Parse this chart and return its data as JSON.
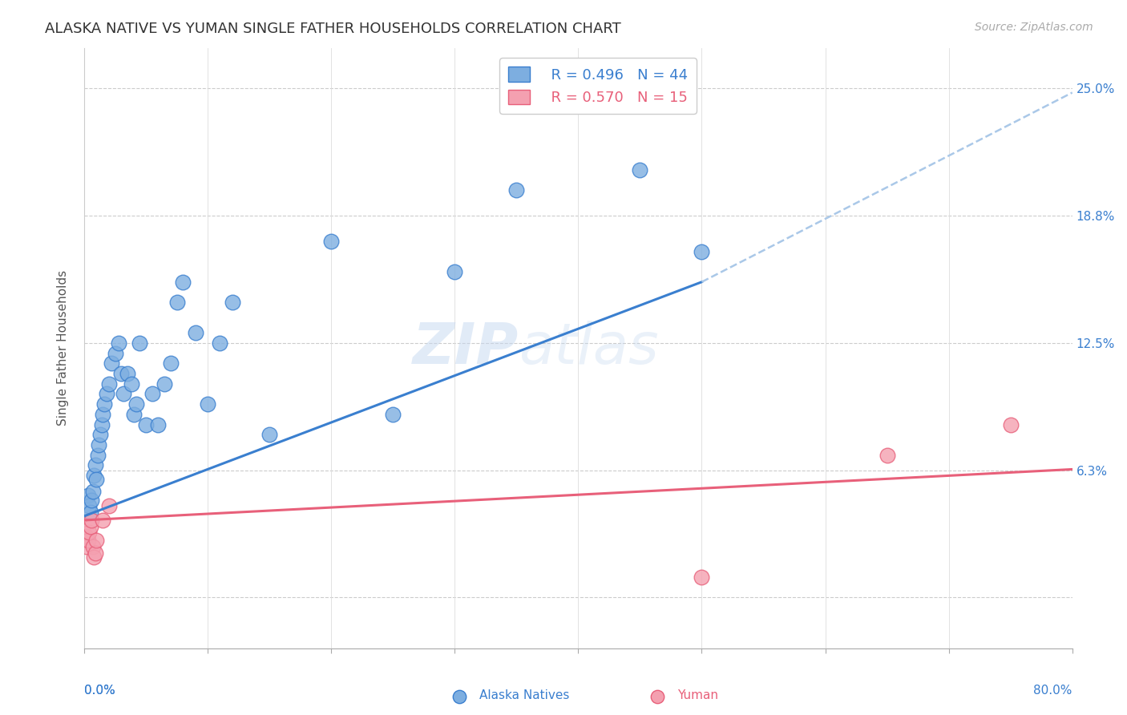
{
  "title": "ALASKA NATIVE VS YUMAN SINGLE FATHER HOUSEHOLDS CORRELATION CHART",
  "source": "Source: ZipAtlas.com",
  "ylabel": "Single Father Households",
  "watermark": "ZIPatlas",
  "alaska_scatter_x": [
    0.003,
    0.004,
    0.005,
    0.006,
    0.007,
    0.008,
    0.009,
    0.01,
    0.011,
    0.012,
    0.013,
    0.014,
    0.015,
    0.016,
    0.018,
    0.02,
    0.022,
    0.025,
    0.028,
    0.03,
    0.032,
    0.035,
    0.038,
    0.04,
    0.042,
    0.045,
    0.05,
    0.055,
    0.06,
    0.065,
    0.07,
    0.075,
    0.08,
    0.09,
    0.1,
    0.11,
    0.12,
    0.15,
    0.2,
    0.25,
    0.3,
    0.35,
    0.45,
    0.5
  ],
  "alaska_scatter_y": [
    0.05,
    0.045,
    0.042,
    0.048,
    0.052,
    0.06,
    0.065,
    0.058,
    0.07,
    0.075,
    0.08,
    0.085,
    0.09,
    0.095,
    0.1,
    0.105,
    0.115,
    0.12,
    0.125,
    0.11,
    0.1,
    0.11,
    0.105,
    0.09,
    0.095,
    0.125,
    0.085,
    0.1,
    0.085,
    0.105,
    0.115,
    0.145,
    0.155,
    0.13,
    0.095,
    0.125,
    0.145,
    0.08,
    0.175,
    0.09,
    0.16,
    0.2,
    0.21,
    0.17
  ],
  "yuman_scatter_x": [
    0.001,
    0.002,
    0.003,
    0.004,
    0.005,
    0.006,
    0.007,
    0.008,
    0.009,
    0.01,
    0.015,
    0.02,
    0.5,
    0.65,
    0.75
  ],
  "yuman_scatter_y": [
    0.03,
    0.025,
    0.028,
    0.032,
    0.035,
    0.038,
    0.025,
    0.02,
    0.022,
    0.028,
    0.038,
    0.045,
    0.01,
    0.07,
    0.085
  ],
  "alaska_line_start_x": 0.0,
  "alaska_line_start_y": 0.04,
  "alaska_line_solid_end_x": 0.5,
  "alaska_line_solid_end_y": 0.155,
  "alaska_line_dash_end_x": 0.8,
  "alaska_line_dash_end_y": 0.248,
  "yuman_line_start_x": 0.0,
  "yuman_line_start_y": 0.038,
  "yuman_line_end_x": 0.8,
  "yuman_line_end_y": 0.063,
  "alaska_R": 0.496,
  "alaska_N": 44,
  "yuman_R": 0.57,
  "yuman_N": 15,
  "alaska_scatter_color": "#7daee0",
  "yuman_scatter_color": "#f4a0b0",
  "alaska_line_color": "#3a7fcf",
  "yuman_line_color": "#e8607a",
  "dashed_line_color": "#aac8e8",
  "yticks": [
    0.0,
    0.0625,
    0.125,
    0.1875,
    0.25
  ],
  "ytick_labels": [
    "",
    "6.3%",
    "12.5%",
    "18.8%",
    "25.0%"
  ],
  "xlim": [
    0.0,
    0.8
  ],
  "ylim": [
    -0.025,
    0.27
  ],
  "title_fontsize": 13,
  "label_fontsize": 11,
  "tick_fontsize": 11,
  "legend_fontsize": 13,
  "source_fontsize": 10
}
